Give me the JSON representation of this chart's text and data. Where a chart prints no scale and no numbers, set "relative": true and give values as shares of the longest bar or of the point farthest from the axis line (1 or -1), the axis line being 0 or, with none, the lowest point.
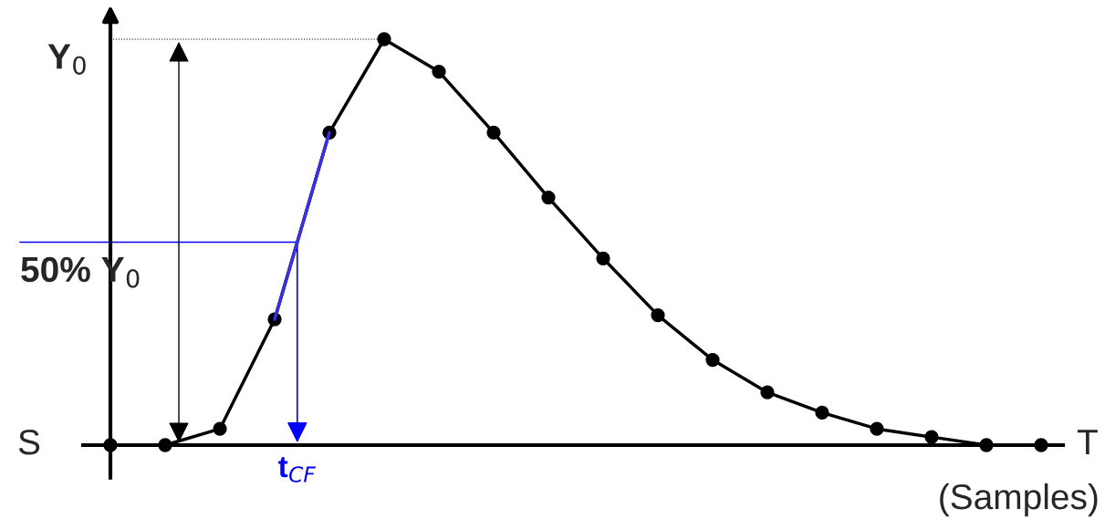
{
  "chart_data": {
    "type": "line",
    "relative": true,
    "xlabel": "T",
    "categories": [
      null,
      null,
      null,
      null,
      null,
      null,
      null,
      null,
      null,
      null,
      null,
      null,
      null,
      null,
      null,
      null,
      null,
      null
    ],
    "series": [
      {
        "color": "#000000",
        "values": [
          0,
          0,
          0.04,
          0.31,
          0.77,
          1,
          0.92,
          0.77,
          0.61,
          0.46,
          0.32,
          0.21,
          0.13,
          0.08,
          0.04,
          0.02,
          0.0,
          0
        ]
      },
      {
        "type": "line",
        "color": "#3b2fe6",
        "marker": "none",
        "values": [
          null,
          null,
          null,
          0.31,
          0.77,
          null,
          null,
          null,
          null,
          null,
          null,
          null,
          null,
          null,
          null,
          null,
          null,
          null
        ]
      }
    ],
    "marker": "circle",
    "line_style": "solid",
    "legend": false,
    "ref_lines": [
      {
        "axis": "y",
        "value": 1,
        "label": "Y$_{0}$",
        "color": "#000000",
        "line_style": "dotted"
      },
      {
        "axis": "y",
        "value": 0.5,
        "label": "50% Y$_{0}$",
        "color": "#0000ff",
        "line_style": "solid"
      }
    ],
    "annotations": [
      "S",
      "t$_{CF}$",
      "(Samples)"
    ]
  }
}
